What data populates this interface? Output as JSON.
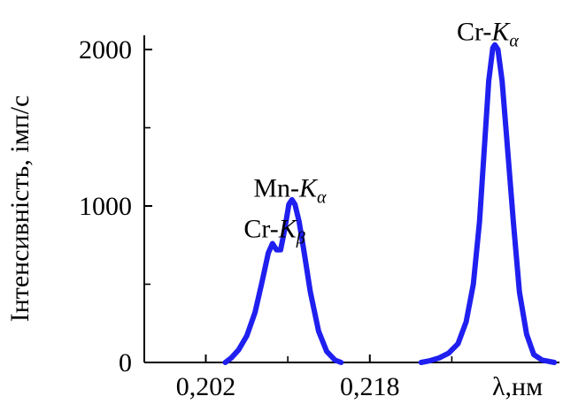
{
  "chart_data": {
    "type": "line",
    "title": "",
    "xlabel": "λ,нм",
    "ylabel": "Інтенсивність, імп/с",
    "xlim": [
      0.196,
      0.2365
    ],
    "ylim": [
      0,
      2000
    ],
    "grid": false,
    "x_ticks": [
      {
        "value": 0.202,
        "label": "0,202"
      },
      {
        "value": 0.218,
        "label": "0,218"
      }
    ],
    "y_ticks": [
      {
        "value": 0,
        "label": "0"
      },
      {
        "value": 1000,
        "label": "1000"
      },
      {
        "value": 2000,
        "label": "2000"
      }
    ],
    "y_minor_ticks": [
      500,
      1500
    ],
    "x_minor_ticks": [
      0.21,
      0.226
    ],
    "annotations": [
      {
        "id": "cr-kb",
        "prefix": "Cr-",
        "letter": "K",
        "subscript": "β",
        "x": 0.2087,
        "y": 800
      },
      {
        "id": "mn-ka",
        "prefix": "Mn-",
        "letter": "K",
        "subscript": "α",
        "x": 0.2102,
        "y": 1060
      },
      {
        "id": "cr-ka",
        "prefix": "Cr-",
        "letter": "K",
        "subscript": "α",
        "x": 0.2295,
        "y": 2060
      }
    ],
    "series": [
      {
        "color": "#1f1ff0",
        "points": [
          [
            0.2039,
            0
          ],
          [
            0.2045,
            30
          ],
          [
            0.2052,
            80
          ],
          [
            0.206,
            170
          ],
          [
            0.2068,
            320
          ],
          [
            0.2075,
            520
          ],
          [
            0.2081,
            700
          ],
          [
            0.2085,
            760
          ],
          [
            0.2089,
            720
          ],
          [
            0.2093,
            720
          ],
          [
            0.2097,
            850
          ],
          [
            0.2101,
            1010
          ],
          [
            0.2104,
            1040
          ],
          [
            0.2107,
            1010
          ],
          [
            0.2111,
            900
          ],
          [
            0.2116,
            700
          ],
          [
            0.2122,
            450
          ],
          [
            0.213,
            200
          ],
          [
            0.2138,
            70
          ],
          [
            0.2146,
            15
          ],
          [
            0.2152,
            0
          ]
        ]
      },
      {
        "color": "#1f1ff0",
        "points": [
          [
            0.223,
            0
          ],
          [
            0.2238,
            10
          ],
          [
            0.2248,
            30
          ],
          [
            0.2257,
            60
          ],
          [
            0.2266,
            120
          ],
          [
            0.2274,
            260
          ],
          [
            0.2281,
            500
          ],
          [
            0.2287,
            900
          ],
          [
            0.2292,
            1400
          ],
          [
            0.2296,
            1800
          ],
          [
            0.23,
            2010
          ],
          [
            0.2302,
            2030
          ],
          [
            0.2305,
            2000
          ],
          [
            0.2309,
            1800
          ],
          [
            0.2314,
            1400
          ],
          [
            0.232,
            900
          ],
          [
            0.2326,
            450
          ],
          [
            0.2333,
            180
          ],
          [
            0.234,
            50
          ],
          [
            0.2348,
            15
          ],
          [
            0.236,
            0
          ]
        ]
      }
    ]
  }
}
